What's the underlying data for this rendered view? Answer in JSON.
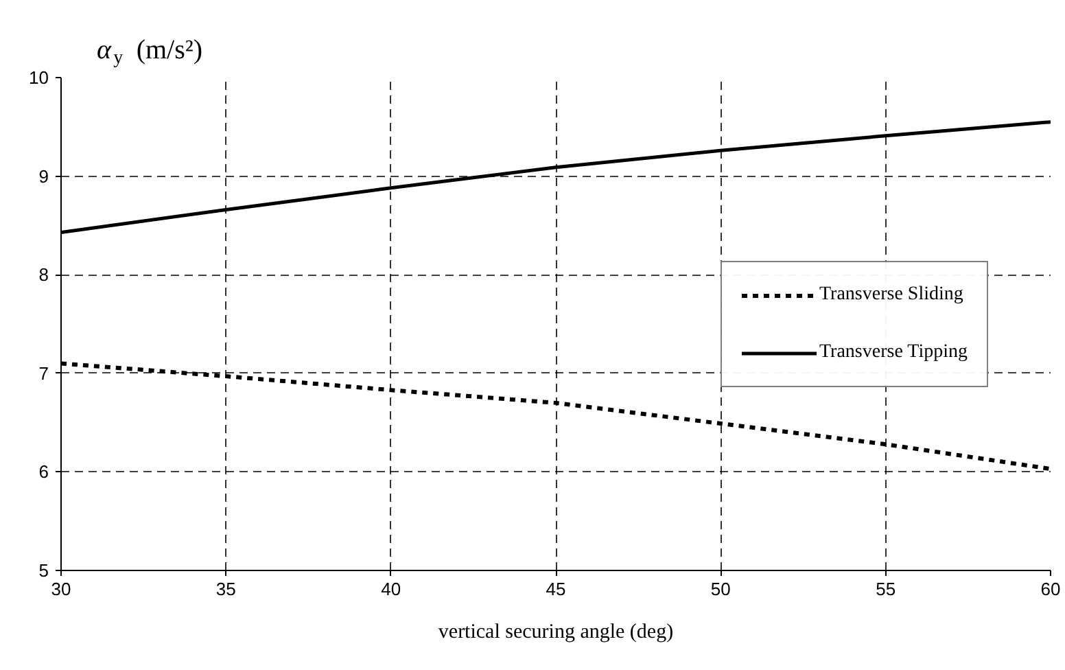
{
  "chart_data": {
    "type": "line",
    "xlabel": "vertical securing angle (deg)",
    "ylabel": "α$_{y}$ (m/s²)",
    "x": [
      30,
      35,
      40,
      45,
      50,
      55,
      60
    ],
    "series": [
      {
        "name": "Transverse Sliding",
        "color": "#000000",
        "line_style": "dotted",
        "values": [
          7.1,
          6.97,
          6.83,
          6.7,
          6.49,
          6.28,
          6.03
        ]
      },
      {
        "name": "Transverse Tipping",
        "color": "#000000",
        "line_style": "solid",
        "values": [
          8.43,
          8.66,
          8.88,
          9.09,
          9.26,
          9.41,
          9.55
        ]
      }
    ],
    "xlim": [
      30,
      60
    ],
    "xticks": [
      30,
      35,
      40,
      45,
      50,
      55,
      60
    ],
    "ylim": [
      5,
      10
    ],
    "yticks": [
      5,
      6,
      7,
      8,
      9,
      10
    ],
    "grid": true,
    "legend": "right",
    "marker": "none"
  }
}
